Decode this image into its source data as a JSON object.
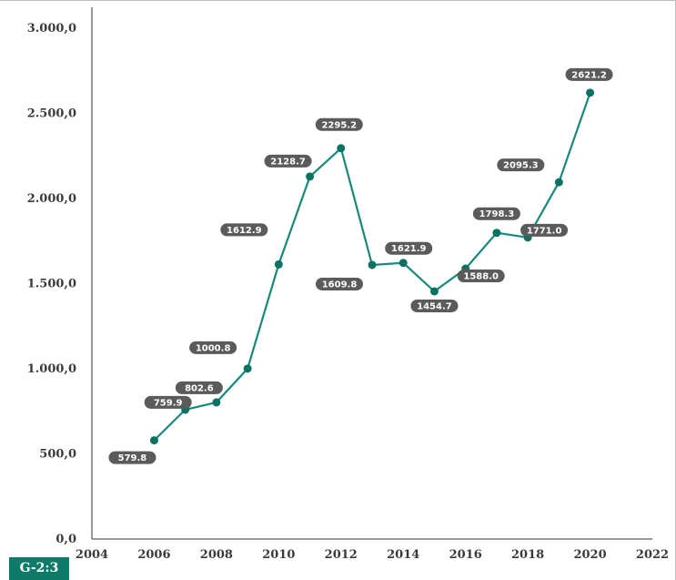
{
  "figure_tag": "G-2:3",
  "colors": {
    "line": "#168a78",
    "marker": "#0d7264",
    "label_bg": "#5b5b5b",
    "label_text": "#ffffff",
    "axis": "#333333",
    "tag_bg": "#0e7a68"
  },
  "chart_data": {
    "type": "line",
    "title": "",
    "xlabel": "",
    "ylabel": "",
    "xlim": [
      2004,
      2022
    ],
    "ylim": [
      0,
      3000
    ],
    "grid": false,
    "x_ticks": [
      2004,
      2006,
      2008,
      2010,
      2012,
      2014,
      2016,
      2018,
      2020,
      2022
    ],
    "x_tick_labels": [
      "2004",
      "2006",
      "2008",
      "2010",
      "2012",
      "2014",
      "2016",
      "2018",
      "2020",
      "2022"
    ],
    "y_ticks": [
      0,
      500,
      1000,
      1500,
      2000,
      2500,
      3000
    ],
    "y_tick_labels": [
      "0,0",
      "500,0",
      "1.000,0",
      "1.500,0",
      "2.000,0",
      "2.500,0",
      "3.000,0"
    ],
    "series": [
      {
        "x": [
          2006,
          2007,
          2008,
          2009,
          2010,
          2011,
          2012,
          2013,
          2014,
          2015,
          2016,
          2017,
          2018,
          2019,
          2020
        ],
        "y": [
          579.8,
          759.9,
          802.6,
          1000.8,
          1612.9,
          2128.7,
          2295.2,
          1609.8,
          1621.9,
          1454.7,
          1588.0,
          1798.3,
          1771.0,
          2095.3,
          2621.2
        ],
        "labels": [
          "579.8",
          "759.9",
          "802.6",
          "1000.8",
          "1612.9",
          "2128.7",
          "2295.2",
          "1609.8",
          "1621.9",
          "1454.7",
          "1588.0",
          "1798.3",
          "1771.0",
          "2095.3",
          "2621.2"
        ]
      }
    ]
  }
}
